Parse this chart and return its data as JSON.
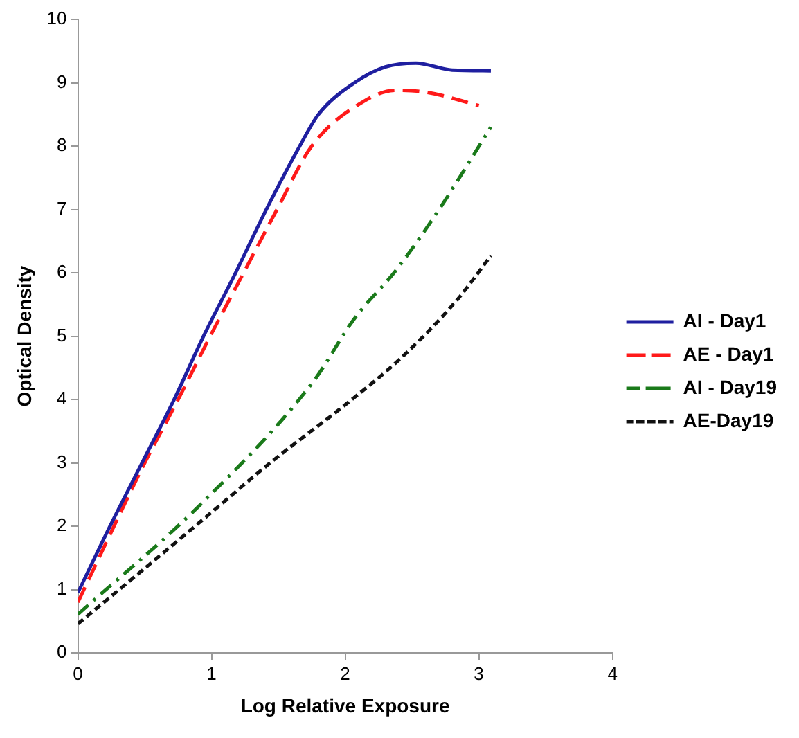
{
  "chart_data": {
    "type": "line",
    "xlabel": "Log Relative Exposure",
    "ylabel": "Optical Density",
    "xlim": [
      0,
      4
    ],
    "xticks": [
      0,
      1,
      2,
      3,
      4
    ],
    "ylim": [
      0,
      10
    ],
    "yticks": [
      0,
      1,
      2,
      3,
      4,
      5,
      6,
      7,
      8,
      9,
      10
    ],
    "grid": false,
    "legend": "right",
    "marker": "none",
    "series": [
      {
        "name": "AI - Day1",
        "color": "#1f1fa0",
        "line_style": "solid",
        "x": [
          0,
          0.24,
          0.48,
          0.72,
          0.94,
          1.18,
          1.41,
          1.66,
          1.8,
          2.07,
          2.3,
          2.53,
          2.8,
          3.09
        ],
        "values": [
          0.95,
          2,
          3,
          4,
          5,
          6,
          7,
          8,
          8.5,
          9,
          9.25,
          9.31,
          9.2,
          9.19
        ]
      },
      {
        "name": "AE - Day1",
        "color": "#ff1a1a",
        "line_style": "dashed",
        "x": [
          0,
          0.27,
          0.5,
          0.75,
          0.99,
          1.24,
          1.49,
          1.75,
          2.15,
          2.38,
          2.61,
          3
        ],
        "values": [
          0.8,
          2,
          3,
          4,
          5,
          6,
          7,
          8,
          8.72,
          8.88,
          8.85,
          8.64
        ]
      },
      {
        "name": "AI - Day19",
        "color": "#1a7a1a",
        "line_style": "dashdot",
        "x": [
          0,
          0.93,
          1.76,
          2.07,
          2.38,
          2.69,
          3.09
        ],
        "values": [
          0.61,
          2.37,
          4.28,
          5.28,
          6.04,
          6.96,
          8.3
        ]
      },
      {
        "name": "AE-Day19",
        "color": "#111111",
        "line_style": "dotted",
        "x": [
          0,
          0.48,
          1,
          1.45,
          1.99,
          2.42,
          2.84,
          3.09
        ],
        "values": [
          0.46,
          1.3,
          2.22,
          3.02,
          3.9,
          4.66,
          5.58,
          6.27
        ]
      }
    ]
  }
}
